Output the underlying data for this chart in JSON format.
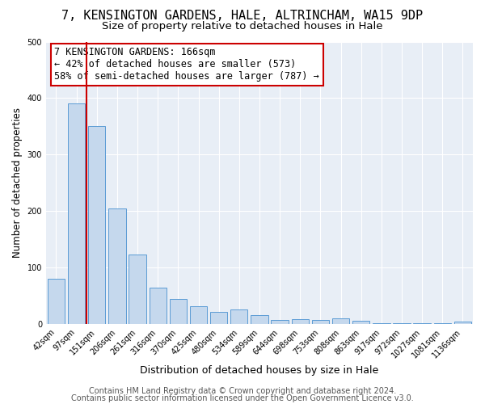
{
  "title1": "7, KENSINGTON GARDENS, HALE, ALTRINCHAM, WA15 9DP",
  "title2": "Size of property relative to detached houses in Hale",
  "xlabel": "Distribution of detached houses by size in Hale",
  "ylabel": "Number of detached properties",
  "bar_labels": [
    "42sqm",
    "97sqm",
    "151sqm",
    "206sqm",
    "261sqm",
    "316sqm",
    "370sqm",
    "425sqm",
    "480sqm",
    "534sqm",
    "589sqm",
    "644sqm",
    "698sqm",
    "753sqm",
    "808sqm",
    "863sqm",
    "917sqm",
    "972sqm",
    "1027sqm",
    "1081sqm",
    "1136sqm"
  ],
  "bar_values": [
    80,
    390,
    350,
    205,
    123,
    64,
    44,
    31,
    22,
    25,
    15,
    7,
    8,
    7,
    10,
    5,
    1,
    1,
    1,
    1,
    4
  ],
  "bar_color": "#c5d8ed",
  "bar_edge_color": "#5b9bd5",
  "vline_x_idx": 2,
  "vline_color": "#cc0000",
  "annotation_line1": "7 KENSINGTON GARDENS: 166sqm",
  "annotation_line2": "← 42% of detached houses are smaller (573)",
  "annotation_line3": "58% of semi-detached houses are larger (787) →",
  "footer1": "Contains HM Land Registry data © Crown copyright and database right 2024.",
  "footer2": "Contains public sector information licensed under the Open Government Licence v3.0.",
  "ylim": [
    0,
    500
  ],
  "bg_color": "#ffffff",
  "plot_bg_color": "#e8eef6",
  "grid_color": "#ffffff",
  "title1_fontsize": 11,
  "title2_fontsize": 9.5,
  "xlabel_fontsize": 9,
  "ylabel_fontsize": 8.5,
  "tick_fontsize": 7,
  "annotation_fontsize": 8.5,
  "footer_fontsize": 7
}
